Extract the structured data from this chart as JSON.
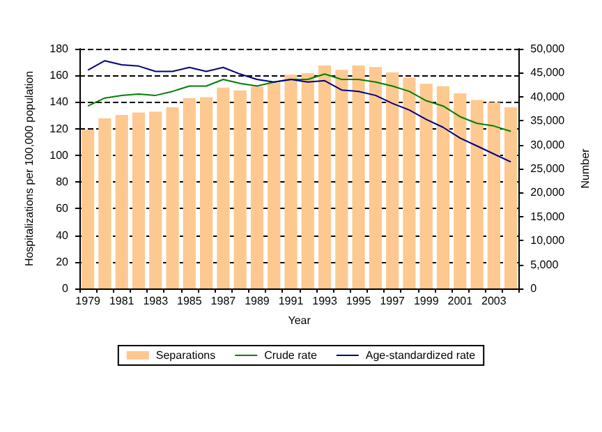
{
  "chart_data": {
    "type": "bar",
    "xlabel": "Year",
    "ylabel": "Hospitalizations per 100,000 population",
    "y2label": "Number",
    "categories": [
      "1979",
      null,
      "1981",
      null,
      "1983",
      null,
      "1985",
      null,
      "1987",
      null,
      "1989",
      null,
      "1991",
      null,
      "1993",
      null,
      "1995",
      null,
      "1997",
      null,
      "1999",
      null,
      "2001",
      null,
      "2003",
      null
    ],
    "series": [
      {
        "name": "Separations",
        "axis": "y2",
        "color": "#fdc990",
        "values": [
          33100,
          35500,
          36200,
          36700,
          36900,
          37800,
          39700,
          39900,
          41900,
          41300,
          42100,
          42900,
          44600,
          44900,
          46500,
          45600,
          46500,
          46200,
          45100,
          44000,
          42700,
          42200,
          40700,
          39300,
          38800,
          37800
        ]
      },
      {
        "name": "Crude rate",
        "type": "line",
        "color": "#008000",
        "values": [
          137,
          143,
          145,
          146,
          145,
          148,
          152,
          152,
          157,
          154,
          152,
          155,
          157,
          157,
          161,
          157,
          157,
          155,
          152,
          148,
          141,
          137,
          129,
          124,
          122,
          118
        ]
      },
      {
        "name": "Age-standardized rate",
        "type": "line",
        "color": "#000080",
        "values": [
          164,
          171,
          168,
          167,
          163,
          163,
          166,
          163,
          166,
          161,
          157,
          155,
          157,
          155,
          156,
          149,
          148,
          145,
          139,
          134,
          127,
          121,
          113,
          107,
          101,
          95
        ]
      }
    ],
    "ylim": [
      0,
      180
    ],
    "yticks": [
      0,
      20,
      40,
      60,
      80,
      100,
      120,
      140,
      160,
      180
    ],
    "y2lim": [
      0,
      50000
    ],
    "y2ticks": [
      {
        "value": 0,
        "label": "0"
      },
      {
        "value": 5000,
        "label": "5,000"
      },
      {
        "value": 10000,
        "label": "10,000"
      },
      {
        "value": 15000,
        "label": "15,000"
      },
      {
        "value": 20000,
        "label": "20,000"
      },
      {
        "value": 25000,
        "label": "25,000"
      },
      {
        "value": 30000,
        "label": "30,000"
      },
      {
        "value": 35000,
        "label": "35,000"
      },
      {
        "value": 40000,
        "label": "40,000"
      },
      {
        "value": 45000,
        "label": "45,000"
      },
      {
        "value": 50000,
        "label": "50,000"
      }
    ],
    "grid": "y",
    "legend": "bottom",
    "marker": "none",
    "line_style": "solid"
  }
}
